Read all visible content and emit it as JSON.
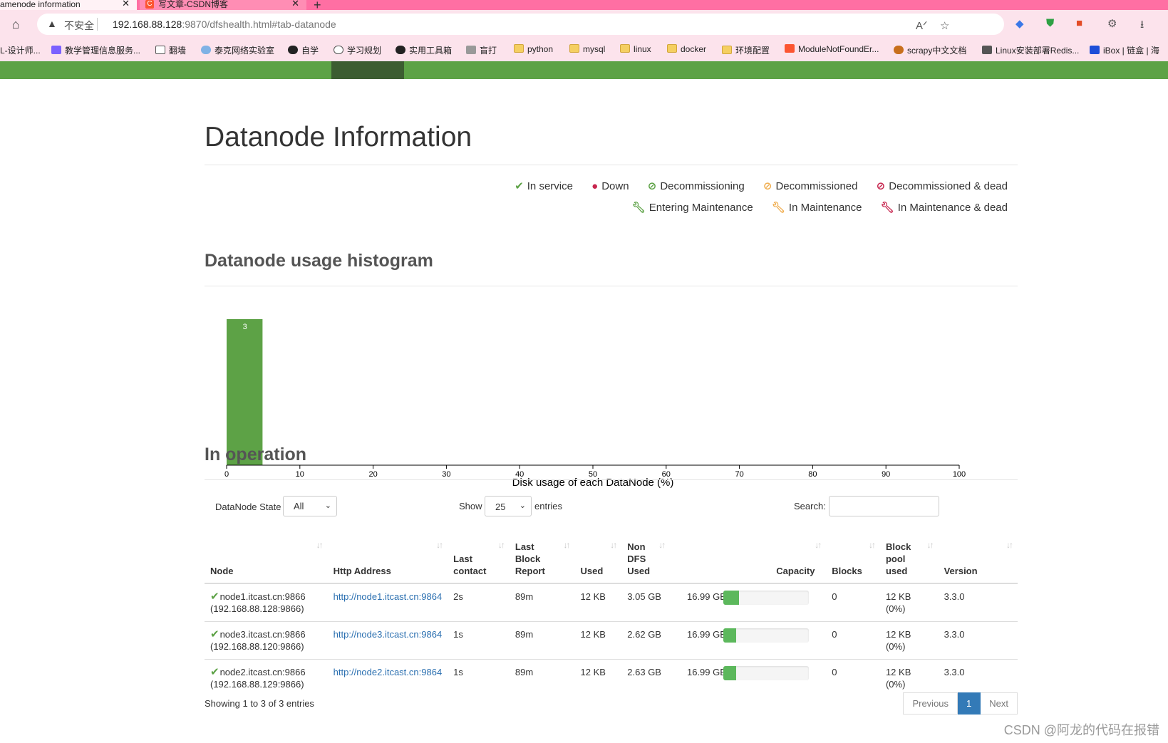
{
  "browser": {
    "tabs": [
      {
        "title": "amenode information",
        "active": true
      },
      {
        "title": "写文章-CSDN博客",
        "active": false
      }
    ],
    "insecure_label": "不安全",
    "url_host": "192.168.88.128",
    "url_rest": ":9870/dfshealth.html#tab-datanode",
    "bookmarks": [
      "L-设计师...",
      "教学管理信息服务...",
      "翻墙",
      "泰克网络实验室",
      "自学",
      "学习规划",
      "实用工具箱",
      "盲打",
      "python",
      "mysql",
      "linux",
      "docker",
      "环境配置",
      "ModuleNotFoundEr...",
      "scrapy中文文档",
      "Linux安装部署Redis...",
      "iBox | 链盒 | 海"
    ]
  },
  "page": {
    "title": "Datanode Information",
    "legend": [
      {
        "label": "In service",
        "icon": "check-icon",
        "color": "#5da246"
      },
      {
        "label": "Down",
        "icon": "exclamation-circle-icon",
        "color": "#c7254e"
      },
      {
        "label": "Decommissioning",
        "icon": "ban-icon",
        "color": "#5da246"
      },
      {
        "label": "Decommissioned",
        "icon": "ban-icon",
        "color": "#f0ad4e"
      },
      {
        "label": "Decommissioned & dead",
        "icon": "ban-icon",
        "color": "#c7254e"
      },
      {
        "label": "Entering Maintenance",
        "icon": "wrench-icon",
        "color": "#5da246"
      },
      {
        "label": "In Maintenance",
        "icon": "wrench-icon",
        "color": "#f0ad4e"
      },
      {
        "label": "In Maintenance & dead",
        "icon": "wrench-icon",
        "color": "#c7254e"
      }
    ],
    "histogram_title": "Datanode usage histogram",
    "operation_title": "In operation",
    "controls": {
      "state_label": "DataNode State",
      "state_value": "All",
      "show_label": "Show",
      "page_length": "25",
      "entries_label": "entries",
      "search_label": "Search:"
    },
    "columns": [
      "Node",
      "Http Address",
      "Last contact",
      "Last Block Report",
      "Used",
      "Non DFS Used",
      "Capacity",
      "Blocks",
      "Block pool used",
      "Version"
    ],
    "rows": [
      {
        "node": "node1.itcast.cn:9866",
        "ip": "(192.168.88.128:9866)",
        "http": "http://node1.itcast.cn:9864",
        "last_contact": "2s",
        "last_block_report": "89m",
        "used": "12 KB",
        "non_dfs_used": "3.05 GB",
        "capacity": "16.99 GB",
        "capacity_used_fraction": 0.18,
        "blocks": "0",
        "block_pool_used": "12 KB (0%)",
        "version": "3.3.0"
      },
      {
        "node": "node3.itcast.cn:9866",
        "ip": "(192.168.88.120:9866)",
        "http": "http://node3.itcast.cn:9864",
        "last_contact": "1s",
        "last_block_report": "89m",
        "used": "12 KB",
        "non_dfs_used": "2.62 GB",
        "capacity": "16.99 GB",
        "capacity_used_fraction": 0.15,
        "blocks": "0",
        "block_pool_used": "12 KB (0%)",
        "version": "3.3.0"
      },
      {
        "node": "node2.itcast.cn:9866",
        "ip": "(192.168.88.129:9866)",
        "http": "http://node2.itcast.cn:9864",
        "last_contact": "1s",
        "last_block_report": "89m",
        "used": "12 KB",
        "non_dfs_used": "2.63 GB",
        "capacity": "16.99 GB",
        "capacity_used_fraction": 0.15,
        "blocks": "0",
        "block_pool_used": "12 KB (0%)",
        "version": "3.3.0"
      }
    ],
    "showing": "Showing 1 to 3 of 3 entries",
    "pager": {
      "previous": "Previous",
      "current": "1",
      "next": "Next"
    },
    "watermark": "CSDN @阿龙的代码在报错"
  },
  "chart_data": {
    "type": "bar",
    "xlabel": "Disk usage of each DataNode (%)",
    "xlim": [
      0,
      100
    ],
    "x_ticks": [
      "0",
      "10",
      "20",
      "30",
      "40",
      "50",
      "60",
      "70",
      "80",
      "90",
      "100"
    ],
    "bins": [
      {
        "x0": 0,
        "x1": 5,
        "count": 3,
        "label": "3"
      }
    ],
    "bar_color": "#5da246"
  }
}
